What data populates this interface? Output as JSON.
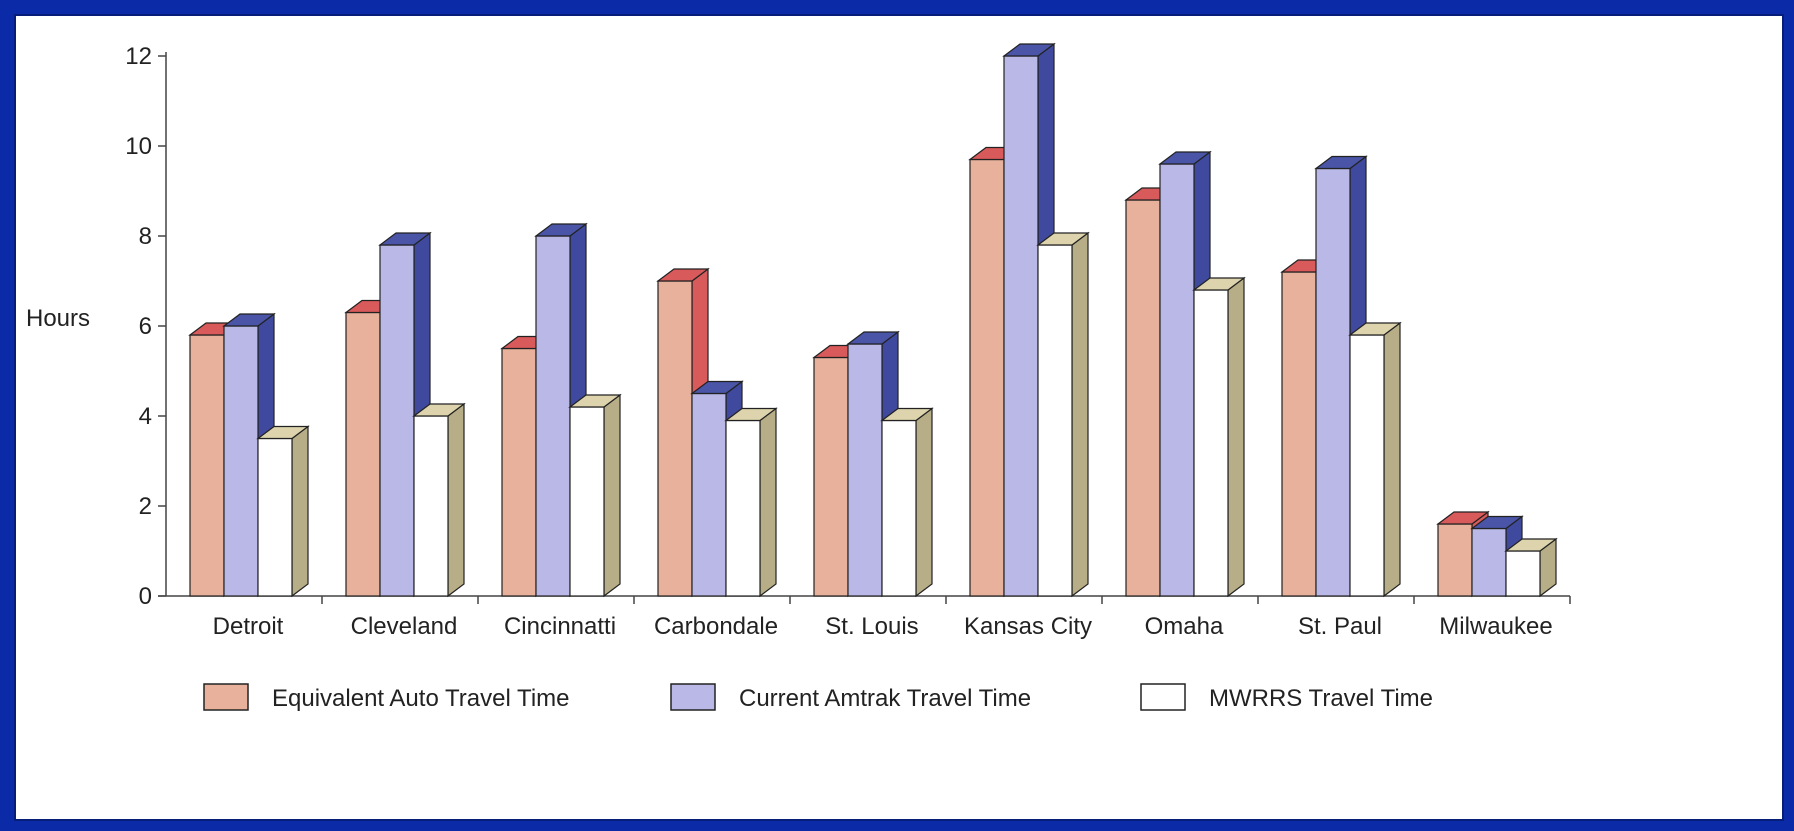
{
  "chart_data": {
    "type": "bar",
    "ylabel": "Hours",
    "ylim": [
      0,
      12
    ],
    "yticks": [
      "0",
      "2",
      "4",
      "6",
      "8",
      "10",
      "12"
    ],
    "categories": [
      "Detroit",
      "Cleveland",
      "Cincinnatti",
      "Carbondale",
      "St. Louis",
      "Kansas City",
      "Omaha",
      "St. Paul",
      "Milwaukee"
    ],
    "series": [
      {
        "name": "Equivalent Auto Travel Time",
        "color": "#e8b19c",
        "top_color": "#d95a5a",
        "side_color": "#d95a5a",
        "values": [
          5.8,
          6.3,
          5.5,
          7.0,
          5.3,
          9.7,
          8.8,
          7.2,
          1.6
        ]
      },
      {
        "name": "Current Amtrak Travel Time",
        "color": "#b9b8e6",
        "top_color": "#4a55a8",
        "side_color": "#3f4a9e",
        "values": [
          6.0,
          7.8,
          8.0,
          4.5,
          5.6,
          12.0,
          9.6,
          9.5,
          1.5
        ]
      },
      {
        "name": "MWRRS Travel Time",
        "color": "#ffffff",
        "top_color": "#ddd4ad",
        "side_color": "#b7ad86",
        "values": [
          3.5,
          4.0,
          4.2,
          3.9,
          3.9,
          7.8,
          6.8,
          5.8,
          1.0
        ]
      }
    ],
    "legend_position": "bottom",
    "grid": false
  }
}
